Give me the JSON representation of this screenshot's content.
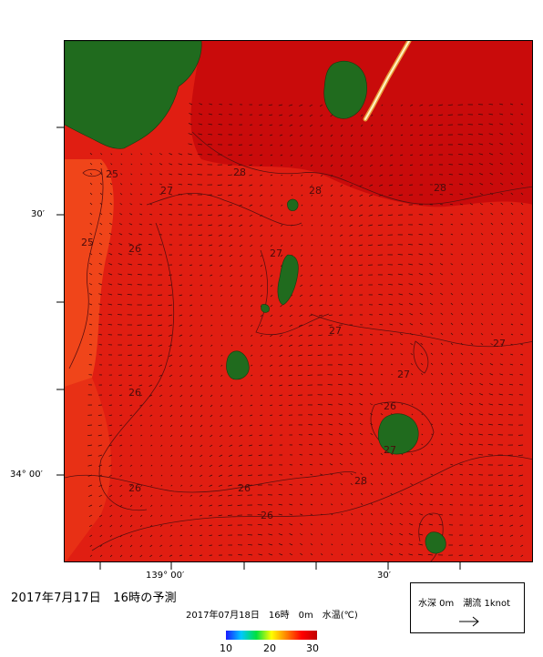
{
  "map": {
    "lat_labels": [
      "30′",
      "34° 00′"
    ],
    "lon_labels": [
      "139° 00′",
      "30′"
    ],
    "contour_labels": [
      "25",
      "27",
      "28",
      "28",
      "28",
      "25",
      "26",
      "27",
      "27",
      "27",
      "27",
      "27",
      "26",
      "26",
      "26",
      "26",
      "28",
      "26"
    ],
    "colors": {
      "sea_warm": "#e01e12",
      "sea_hot": "#c90b0b",
      "sea_cool": "#f0451a",
      "land": "#206b1e",
      "contour": "#5a1010",
      "vector": "#3a0a0a",
      "track": "#fff4c4"
    }
  },
  "caption": "2017年7月17日　16時の予測",
  "product_title": "2017年07月18日　16時　0m　水温(℃)",
  "legend": {
    "ticks": [
      "10",
      "20",
      "30"
    ],
    "gradient": [
      "#1a1aff",
      "#00c8ff",
      "#00e040",
      "#ffff00",
      "#ff8000",
      "#ff0000",
      "#c00000"
    ]
  },
  "current_box": {
    "label": "水深 0m　潮流 1knot",
    "arrow_icon": "arrow-right-icon"
  }
}
